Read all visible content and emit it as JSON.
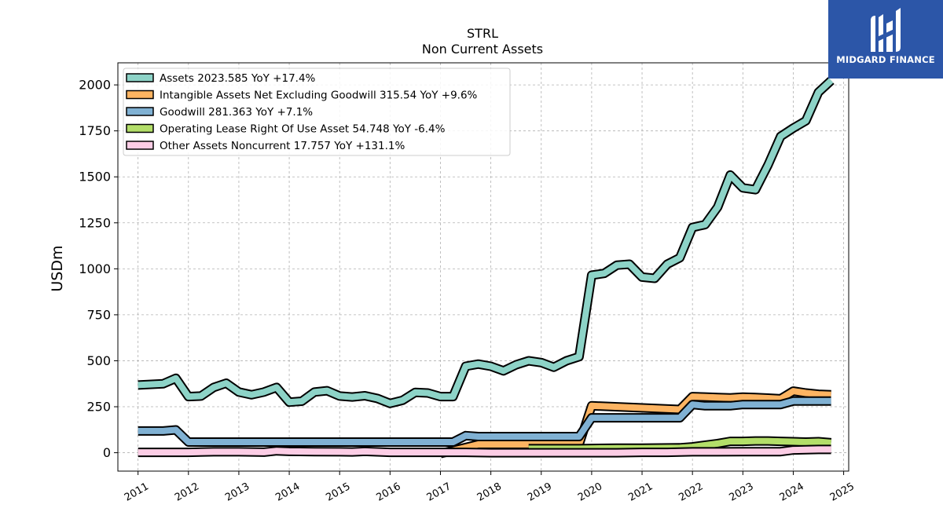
{
  "brand": {
    "name": "MIDGARD FINANCE",
    "bg_color": "#2c56a8",
    "icon": "midgard-logo-icon"
  },
  "chart_data": {
    "type": "line",
    "title": "STRL",
    "subtitle": "Non Current  Assets",
    "xlabel": "",
    "ylabel": "USDm",
    "xlim": [
      2010.6,
      2025.1
    ],
    "ylim": [
      -100,
      2120
    ],
    "yticks": [
      0,
      250,
      500,
      750,
      1000,
      1250,
      1500,
      1750,
      2000
    ],
    "xticks": [
      "2011",
      "2012",
      "2013",
      "2014",
      "2015",
      "2016",
      "2017",
      "2018",
      "2019",
      "2020",
      "2021",
      "2022",
      "2023",
      "2024",
      "2025"
    ],
    "grid": true,
    "legend_position": "top-left",
    "series": [
      {
        "name": "Assets  2023.585 YoY +17.4%",
        "color": "#8dd3c7",
        "x": [
          2011.0,
          2011.5,
          2011.75,
          2012.0,
          2012.25,
          2012.5,
          2012.75,
          2013.0,
          2013.25,
          2013.5,
          2013.75,
          2014.0,
          2014.25,
          2014.5,
          2014.75,
          2015.0,
          2015.25,
          2015.5,
          2015.75,
          2016.0,
          2016.25,
          2016.5,
          2016.75,
          2017.0,
          2017.25,
          2017.5,
          2017.75,
          2018.0,
          2018.25,
          2018.5,
          2018.75,
          2019.0,
          2019.25,
          2019.5,
          2019.75,
          2020.0,
          2020.25,
          2020.5,
          2020.75,
          2021.0,
          2021.25,
          2021.5,
          2021.75,
          2022.0,
          2022.25,
          2022.5,
          2022.75,
          2023.0,
          2023.25,
          2023.5,
          2023.75,
          2024.0,
          2024.25,
          2024.5,
          2024.75
        ],
        "y": [
          368,
          375,
          405,
          305,
          308,
          355,
          378,
          330,
          315,
          330,
          355,
          275,
          280,
          330,
          337,
          308,
          303,
          310,
          295,
          268,
          285,
          328,
          325,
          305,
          305,
          470,
          482,
          470,
          445,
          478,
          500,
          490,
          465,
          500,
          522,
          965,
          975,
          1020,
          1025,
          955,
          948,
          1025,
          1060,
          1225,
          1240,
          1335,
          1510,
          1440,
          1430,
          1565,
          1720,
          1765,
          1805,
          1960,
          2023.585
        ]
      },
      {
        "name": "Intangible Assets Net Excluding Goodwill  315.54 YoY +9.6%",
        "color": "#fdb462",
        "x": [
          2017.0,
          2017.75,
          2019.75,
          2020.0,
          2021.75,
          2022.0,
          2022.25,
          2022.5,
          2022.75,
          2023.0,
          2023.25,
          2023.5,
          2023.75,
          2024.0,
          2024.25,
          2024.5,
          2024.75
        ],
        "y": [
          -5,
          45,
          45,
          255,
          235,
          305,
          303,
          300,
          298,
          302,
          300,
          297,
          293,
          335,
          325,
          318,
          315.54
        ]
      },
      {
        "name": "Goodwill  281.363 YoY +7.1%",
        "color": "#80b1d3",
        "x": [
          2011.0,
          2011.5,
          2011.75,
          2012.0,
          2017.25,
          2017.5,
          2017.75,
          2019.75,
          2020.0,
          2021.75,
          2022.0,
          2022.25,
          2022.5,
          2022.75,
          2023.0,
          2023.25,
          2023.5,
          2023.75,
          2024.0,
          2024.25,
          2024.5,
          2024.75
        ],
        "y": [
          118,
          118,
          124,
          58,
          58,
          93,
          88,
          88,
          190,
          190,
          262,
          255,
          255,
          255,
          262,
          262,
          262,
          262,
          281,
          281,
          281,
          281.363
        ]
      },
      {
        "name": "Operating Lease Right Of Use Asset  54.748 YoY -6.4%",
        "color": "#b3de69",
        "x": [
          2018.75,
          2019.75,
          2020.5,
          2021.0,
          2021.75,
          2022.0,
          2022.5,
          2022.75,
          2023.0,
          2023.25,
          2023.5,
          2023.75,
          2024.0,
          2024.25,
          2024.5,
          2024.75
        ],
        "y": [
          22,
          22,
          25,
          25,
          27,
          32,
          50,
          62,
          62,
          64,
          64,
          62,
          60,
          58,
          60,
          54.748
        ]
      },
      {
        "name": "Other Assets Noncurrent  17.757 YoY +131.1%",
        "color": "#fccde5",
        "x": [
          2011.0,
          2011.5,
          2012.0,
          2012.5,
          2013.0,
          2013.5,
          2013.75,
          2014.0,
          2014.5,
          2015.0,
          2015.25,
          2015.5,
          2016.0,
          2016.5,
          2017.0,
          2017.5,
          2018.0,
          2018.5,
          2019.0,
          2019.5,
          2020.0,
          2020.5,
          2021.0,
          2021.5,
          2022.0,
          2022.5,
          2023.0,
          2023.5,
          2023.75,
          2024.0,
          2024.25,
          2024.5,
          2024.75
        ],
        "y": [
          2,
          2,
          2,
          5,
          5,
          3,
          10,
          7,
          6,
          5,
          4,
          7,
          2,
          2,
          2,
          2,
          0,
          0,
          0,
          0,
          0,
          0,
          2,
          2,
          5,
          5,
          6,
          6,
          6,
          15,
          16,
          18,
          17.757
        ]
      }
    ]
  }
}
